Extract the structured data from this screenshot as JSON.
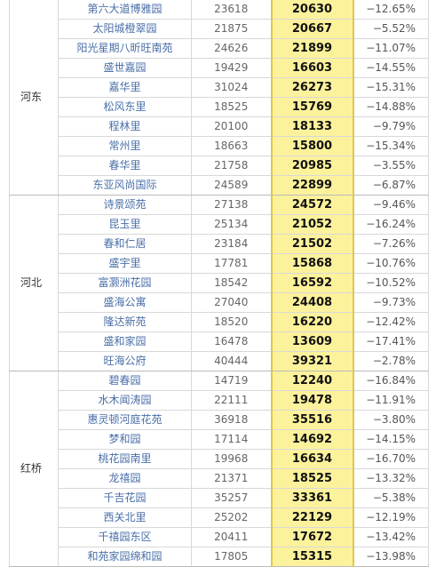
{
  "groups": [
    {
      "region": "河东",
      "rows": [
        {
          "name": "第六大道博雅园",
          "old": "23618",
          "new": "20630",
          "change": "−12.65%"
        },
        {
          "name": "太阳城橙翠园",
          "old": "21875",
          "new": "20667",
          "change": "−5.52%"
        },
        {
          "name": "阳光星期八昕旺南苑",
          "old": "24626",
          "new": "21899",
          "change": "−11.07%"
        },
        {
          "name": "盛世嘉园",
          "old": "19429",
          "new": "16603",
          "change": "−14.55%"
        },
        {
          "name": "嘉华里",
          "old": "31024",
          "new": "26273",
          "change": "−15.31%"
        },
        {
          "name": "松风东里",
          "old": "18525",
          "new": "15769",
          "change": "−14.88%"
        },
        {
          "name": "程林里",
          "old": "20100",
          "new": "18133",
          "change": "−9.79%"
        },
        {
          "name": "常州里",
          "old": "18663",
          "new": "15800",
          "change": "−15.34%"
        },
        {
          "name": "春华里",
          "old": "21758",
          "new": "20985",
          "change": "−3.55%"
        },
        {
          "name": "东亚风尚国际",
          "old": "24589",
          "new": "22899",
          "change": "−6.87%"
        }
      ]
    },
    {
      "region": "河北",
      "rows": [
        {
          "name": "诗景颂苑",
          "old": "27138",
          "new": "24572",
          "change": "−9.46%"
        },
        {
          "name": "昆玉里",
          "old": "25134",
          "new": "21052",
          "change": "−16.24%"
        },
        {
          "name": "春和仁居",
          "old": "23184",
          "new": "21502",
          "change": "−7.26%"
        },
        {
          "name": "盛宇里",
          "old": "17781",
          "new": "15868",
          "change": "−10.76%"
        },
        {
          "name": "富灏洲花园",
          "old": "18542",
          "new": "16592",
          "change": "−10.52%"
        },
        {
          "name": "盛海公寓",
          "old": "27040",
          "new": "24408",
          "change": "−9.73%"
        },
        {
          "name": "隆达新苑",
          "old": "18520",
          "new": "16220",
          "change": "−12.42%"
        },
        {
          "name": "盛和家园",
          "old": "16478",
          "new": "13609",
          "change": "−17.41%"
        },
        {
          "name": "旺海公府",
          "old": "40444",
          "new": "39321",
          "change": "−2.78%"
        }
      ]
    },
    {
      "region": "红桥",
      "rows": [
        {
          "name": "碧春园",
          "old": "14719",
          "new": "12240",
          "change": "−16.84%"
        },
        {
          "name": "水木闻涛园",
          "old": "22111",
          "new": "19478",
          "change": "−11.91%"
        },
        {
          "name": "惠灵顿河庭花苑",
          "old": "36918",
          "new": "35516",
          "change": "−3.80%"
        },
        {
          "name": "梦和园",
          "old": "17114",
          "new": "14692",
          "change": "−14.15%"
        },
        {
          "name": "桃花园南里",
          "old": "19968",
          "new": "16634",
          "change": "−16.70%"
        },
        {
          "name": "龙禧园",
          "old": "21371",
          "new": "18525",
          "change": "−13.32%"
        },
        {
          "name": "千吉花园",
          "old": "35257",
          "new": "33361",
          "change": "−5.38%"
        },
        {
          "name": "西关北里",
          "old": "25202",
          "new": "22129",
          "change": "−12.19%"
        },
        {
          "name": "千禧园东区",
          "old": "20411",
          "new": "17672",
          "change": "−13.42%"
        },
        {
          "name": "和苑家园绵和园",
          "old": "17805",
          "new": "15315",
          "change": "−13.98%"
        }
      ]
    }
  ]
}
